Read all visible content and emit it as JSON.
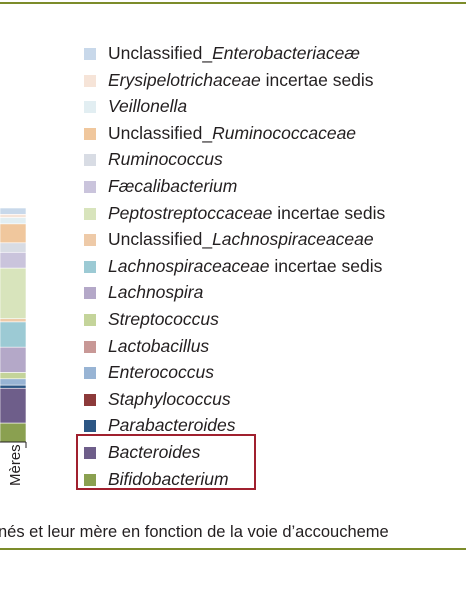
{
  "chart_data": {
    "type": "bar",
    "stacked": true,
    "normalized": true,
    "categories": [
      "Mères"
    ],
    "series": [
      {
        "name": "Bifidobacterium",
        "values": [
          6
        ],
        "color": "#8aa050"
      },
      {
        "name": "Bacteroides",
        "values": [
          11
        ],
        "color": "#6e5e8a"
      },
      {
        "name": "Parabacteroides",
        "values": [
          1
        ],
        "color": "#2c5684"
      },
      {
        "name": "Staphylococcus",
        "values": [
          0
        ],
        "color": "#8c3a3a"
      },
      {
        "name": "Enterococcus",
        "values": [
          2
        ],
        "color": "#98b4d4"
      },
      {
        "name": "Lactobacillus",
        "values": [
          0
        ],
        "color": "#c89896"
      },
      {
        "name": "Streptococcus",
        "values": [
          2
        ],
        "color": "#c4d49a"
      },
      {
        "name": "Lachnospira",
        "values": [
          8
        ],
        "color": "#b4a8c8"
      },
      {
        "name": "Lachnospiraceaceae incertae sedis",
        "values": [
          8
        ],
        "color": "#9ccad4"
      },
      {
        "name": "Unclassified_Lachnospiraceaceae",
        "values": [
          1
        ],
        "color": "#eecaa8"
      },
      {
        "name": "Peptostreptoccaceae incertae sedis",
        "values": [
          16
        ],
        "color": "#d8e4bc"
      },
      {
        "name": "Fæcalibacterium",
        "values": [
          5
        ],
        "color": "#cac4dc"
      },
      {
        "name": "Ruminococcus",
        "values": [
          3
        ],
        "color": "#d8dce4"
      },
      {
        "name": "Unclassified_Ruminococcaceae",
        "values": [
          6
        ],
        "color": "#f0c79d"
      },
      {
        "name": "Veillonella",
        "values": [
          2
        ],
        "color": "#e2eef2"
      },
      {
        "name": "Erysipelotrichaceae incertae sedis",
        "values": [
          1
        ],
        "color": "#f6e4d8"
      },
      {
        "name": "Unclassified_Enterobacteriaceæ",
        "values": [
          2
        ],
        "color": "#c8d8ea"
      }
    ]
  },
  "legend_items": [
    {
      "pre": "Unclassified_",
      "em": "Enterobacteriaceæ",
      "post": "",
      "color": "#c8d8ea"
    },
    {
      "pre": "",
      "em": "Erysipelotrichaceae",
      "post": " incertae sedis",
      "color": "#f6e4d8"
    },
    {
      "pre": "",
      "em": "Veillonella",
      "post": "",
      "color": "#e2eef2"
    },
    {
      "pre": "Unclassified_",
      "em": "Ruminococcaceae",
      "post": "",
      "color": "#f0c79d"
    },
    {
      "pre": "",
      "em": "Ruminococcus",
      "post": "",
      "color": "#d8dce4"
    },
    {
      "pre": "",
      "em": "Fæcalibacterium",
      "post": "",
      "color": "#cac4dc"
    },
    {
      "pre": "",
      "em": "Peptostreptoccaceae",
      "post": " incertae sedis",
      "color": "#d8e4bc"
    },
    {
      "pre": "Unclassified_",
      "em": "Lachnospiraceaceae",
      "post": "",
      "color": "#eecaa8"
    },
    {
      "pre": "",
      "em": "Lachnospiraceaceae",
      "post": " incertae sedis",
      "color": "#9ccad4"
    },
    {
      "pre": "",
      "em": "Lachnospira",
      "post": "",
      "color": "#b4a8c8"
    },
    {
      "pre": "",
      "em": "Streptococcus",
      "post": "",
      "color": "#c4d49a"
    },
    {
      "pre": "",
      "em": "Lactobacillus",
      "post": "",
      "color": "#c89896"
    },
    {
      "pre": "",
      "em": "Enterococcus",
      "post": "",
      "color": "#98b4d4"
    },
    {
      "pre": "",
      "em": "Staphylococcus",
      "post": "",
      "color": "#8c3a3a"
    },
    {
      "pre": "",
      "em": "Parabacteroides",
      "post": "",
      "color": "#2c5684"
    },
    {
      "pre": "",
      "em": "Bacteroides",
      "post": "",
      "color": "#6e5e8a"
    },
    {
      "pre": "",
      "em": "Bifidobacterium",
      "post": "",
      "color": "#8aa050"
    }
  ],
  "caption": "nés et leur mère en fonction de la voie d’accoucheme",
  "colors": {
    "rule": "#7c8c2a",
    "highlight": "#a0202e"
  }
}
